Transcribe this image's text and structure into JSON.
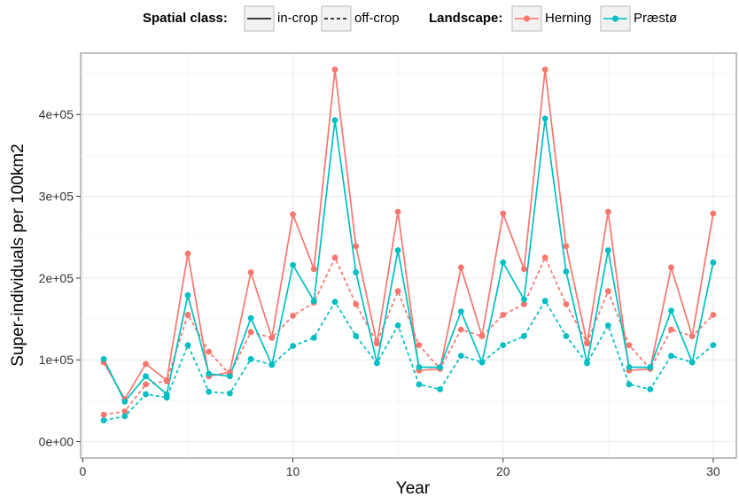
{
  "chart_data": {
    "type": "line",
    "xlabel": "Year",
    "ylabel": "Super-individuals per 100km2",
    "xlim": [
      -0.1,
      31.1
    ],
    "ylim": [
      -20000,
      475000
    ],
    "xticks": [
      0,
      10,
      20,
      30
    ],
    "xtick_labels": [
      "0",
      "10",
      "20",
      "30"
    ],
    "yticks": [
      0,
      100000,
      200000,
      300000,
      400000
    ],
    "ytick_labels": [
      "0e+00",
      "1e+05",
      "2e+05",
      "3e+05",
      "4e+05"
    ],
    "grid": true,
    "legend_position": "top",
    "legend": {
      "linetype_title": "Spatial class:",
      "linetype_labels": [
        "in-crop",
        "off-crop"
      ],
      "color_title": "Landscape:",
      "color_labels": [
        "Herning",
        "Præstø"
      ]
    },
    "colors": {
      "Herning": "#F8766D",
      "Præstø": "#00BFC4"
    },
    "x": [
      1,
      2,
      3,
      4,
      5,
      6,
      7,
      8,
      9,
      10,
      11,
      12,
      13,
      14,
      15,
      16,
      17,
      18,
      19,
      20,
      21,
      22,
      23,
      24,
      25,
      26,
      27,
      28,
      29,
      30
    ],
    "series": [
      {
        "landscape": "Herning",
        "spatial_class": "in-crop",
        "linetype": "solid",
        "values": [
          97000,
          52000,
          95000,
          75000,
          230000,
          80000,
          85000,
          207000,
          127000,
          278000,
          211000,
          455000,
          239000,
          120000,
          281000,
          87000,
          89000,
          213000,
          129000,
          279000,
          211000,
          455000,
          239000,
          120000,
          281000,
          87000,
          89000,
          213000,
          129000,
          279000
        ]
      },
      {
        "landscape": "Herning",
        "spatial_class": "off-crop",
        "linetype": "dashed",
        "values": [
          33000,
          37000,
          70000,
          74000,
          155000,
          110000,
          82000,
          134000,
          127000,
          154000,
          170000,
          225000,
          168000,
          121000,
          184000,
          118000,
          89000,
          137000,
          129000,
          155000,
          168000,
          225000,
          168000,
          121000,
          184000,
          118000,
          89000,
          137000,
          129000,
          155000
        ]
      },
      {
        "landscape": "Præstø",
        "spatial_class": "in-crop",
        "linetype": "solid",
        "values": [
          101000,
          49000,
          80000,
          58000,
          179000,
          83000,
          80000,
          151000,
          94000,
          216000,
          172000,
          393000,
          207000,
          96000,
          234000,
          91000,
          91000,
          159000,
          97000,
          219000,
          174000,
          395000,
          208000,
          96000,
          234000,
          91000,
          91000,
          160000,
          97000,
          219000
        ]
      },
      {
        "landscape": "Præstø",
        "spatial_class": "off-crop",
        "linetype": "dashed",
        "values": [
          26000,
          31000,
          58000,
          54000,
          118000,
          61000,
          59000,
          101000,
          94000,
          117000,
          127000,
          171000,
          129000,
          96000,
          142000,
          70000,
          64000,
          105000,
          97000,
          118000,
          129000,
          172000,
          129000,
          96000,
          142000,
          70000,
          64000,
          105000,
          97000,
          118000
        ]
      }
    ]
  }
}
